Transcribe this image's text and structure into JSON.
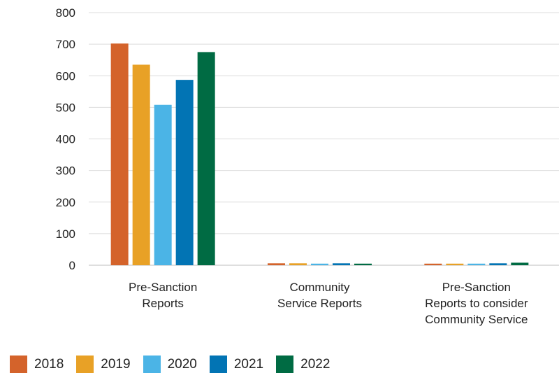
{
  "chart_data": {
    "type": "bar",
    "categories": [
      [
        "Pre-Sanction",
        "Reports"
      ],
      [
        "Community",
        "Service Reports"
      ],
      [
        "Pre-Sanction",
        "Reports to consider",
        "Community Service"
      ]
    ],
    "series": [
      {
        "name": "2018",
        "color": "#D4632B",
        "values": [
          702,
          6,
          5
        ]
      },
      {
        "name": "2019",
        "color": "#E8A126",
        "values": [
          635,
          6,
          5
        ]
      },
      {
        "name": "2020",
        "color": "#4BB4E6",
        "values": [
          508,
          5,
          5
        ]
      },
      {
        "name": "2021",
        "color": "#0274B4",
        "values": [
          587,
          6,
          6
        ]
      },
      {
        "name": "2022",
        "color": "#006B43",
        "values": [
          675,
          5,
          8
        ]
      }
    ],
    "ylim": [
      0,
      800
    ],
    "yticks": [
      0,
      100,
      200,
      300,
      400,
      500,
      600,
      700,
      800
    ],
    "grid": true,
    "legend": "bottom-left"
  }
}
